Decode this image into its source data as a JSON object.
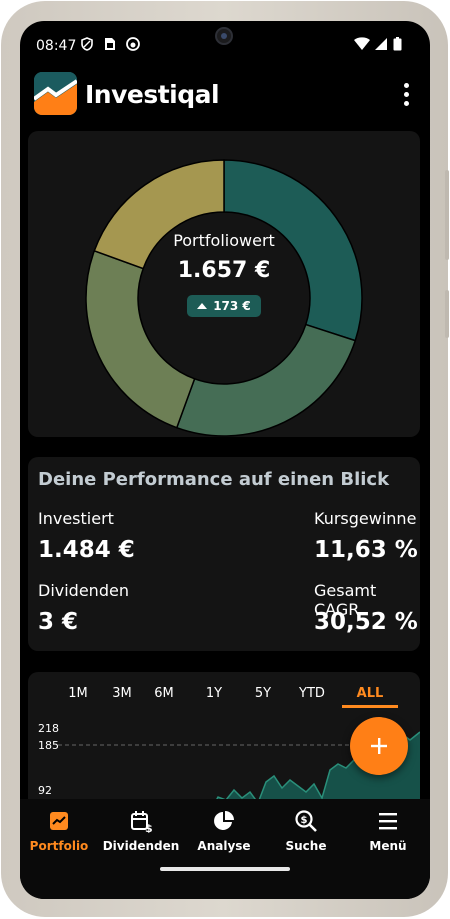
{
  "status_bar": {
    "time": "08:47"
  },
  "app": {
    "title": "Investiqal"
  },
  "portfolio": {
    "label": "Portfoliowert",
    "value": "1.657 €",
    "change": "173 €",
    "donut_colors": [
      "#1d5c56",
      "#456d55",
      "#6d7f55",
      "#a59750"
    ]
  },
  "performance": {
    "title": "Deine Performance auf einen Blick",
    "invested_label": "Investiert",
    "invested_value": "1.484 €",
    "gains_label": "Kursgewinne",
    "gains_value": "11,63 %",
    "dividends_label": "Dividenden",
    "dividends_value": "3 €",
    "cagr_label": "Gesamt CAGR",
    "cagr_value": "30,52 %"
  },
  "chart": {
    "ranges": [
      "1M",
      "3M",
      "6M",
      "1Y",
      "5Y",
      "YTD",
      "ALL"
    ],
    "active_range": "ALL",
    "y_ticks": [
      "218",
      "185",
      "92"
    ],
    "accent": "#ff8a1f"
  },
  "nav": {
    "items": [
      {
        "label": "Portfolio",
        "icon": "portfolio-chart-icon",
        "active": true
      },
      {
        "label": "Dividenden",
        "icon": "calendar-dollar-icon",
        "active": false
      },
      {
        "label": "Analyse",
        "icon": "pie-chart-icon",
        "active": false
      },
      {
        "label": "Suche",
        "icon": "search-dollar-icon",
        "active": false
      },
      {
        "label": "Menü",
        "icon": "menu-icon",
        "active": false
      }
    ]
  }
}
